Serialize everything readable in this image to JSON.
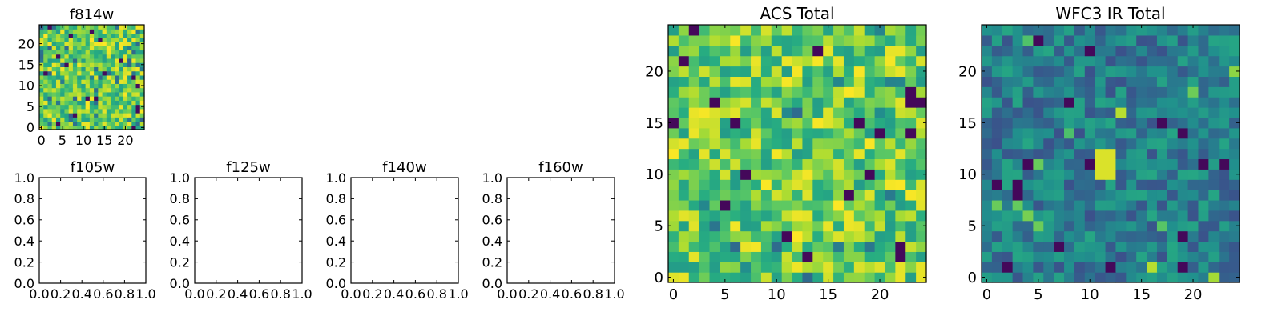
{
  "chart_data": [
    {
      "type": "heatmap",
      "title": "f814w",
      "xlim": [
        -0.5,
        24.5
      ],
      "ylim": [
        -0.5,
        24.5
      ],
      "xticks": [
        0,
        5,
        10,
        15,
        20
      ],
      "yticks": [
        0,
        5,
        10,
        15,
        20
      ],
      "grid_size": [
        25,
        25
      ],
      "colormap": "viridis",
      "grid": false
    },
    {
      "type": "scatter",
      "title": "f105w",
      "xlim": [
        0,
        1
      ],
      "ylim": [
        0,
        1
      ],
      "xticks": [
        "0.0",
        "0.2",
        "0.4",
        "0.6",
        "0.8",
        "1.0"
      ],
      "yticks": [
        "0.0",
        "0.2",
        "0.4",
        "0.6",
        "0.8",
        "1.0"
      ],
      "series": [],
      "grid": false
    },
    {
      "type": "scatter",
      "title": "f125w",
      "xlim": [
        0,
        1
      ],
      "ylim": [
        0,
        1
      ],
      "xticks": [
        "0.0",
        "0.2",
        "0.4",
        "0.6",
        "0.8",
        "1.0"
      ],
      "yticks": [
        "0.0",
        "0.2",
        "0.4",
        "0.6",
        "0.8",
        "1.0"
      ],
      "series": [],
      "grid": false
    },
    {
      "type": "scatter",
      "title": "f140w",
      "xlim": [
        0,
        1
      ],
      "ylim": [
        0,
        1
      ],
      "xticks": [
        "0.0",
        "0.2",
        "0.4",
        "0.6",
        "0.8",
        "1.0"
      ],
      "yticks": [
        "0.0",
        "0.2",
        "0.4",
        "0.6",
        "0.8",
        "1.0"
      ],
      "series": [],
      "grid": false
    },
    {
      "type": "scatter",
      "title": "f160w",
      "xlim": [
        0,
        1
      ],
      "ylim": [
        0,
        1
      ],
      "xticks": [
        "0.0",
        "0.2",
        "0.4",
        "0.6",
        "0.8",
        "1.0"
      ],
      "yticks": [
        "0.0",
        "0.2",
        "0.4",
        "0.6",
        "0.8",
        "1.0"
      ],
      "series": [],
      "grid": false
    },
    {
      "type": "heatmap",
      "title": "ACS Total",
      "xlim": [
        -0.5,
        24.5
      ],
      "ylim": [
        -0.5,
        24.5
      ],
      "xticks": [
        0,
        5,
        10,
        15,
        20
      ],
      "yticks": [
        0,
        5,
        10,
        15,
        20
      ],
      "grid_size": [
        25,
        25
      ],
      "colormap": "viridis",
      "grid": false
    },
    {
      "type": "heatmap",
      "title": "WFC3 IR Total",
      "xlim": [
        -0.5,
        24.5
      ],
      "ylim": [
        -0.5,
        24.5
      ],
      "xticks": [
        0,
        5,
        10,
        15,
        20
      ],
      "yticks": [
        0,
        5,
        10,
        15,
        20
      ],
      "grid_size": [
        25,
        25
      ],
      "colormap": "viridis",
      "grid": false,
      "bright_patch": {
        "x": [
          11,
          12
        ],
        "y": [
          10,
          12
        ]
      }
    }
  ]
}
